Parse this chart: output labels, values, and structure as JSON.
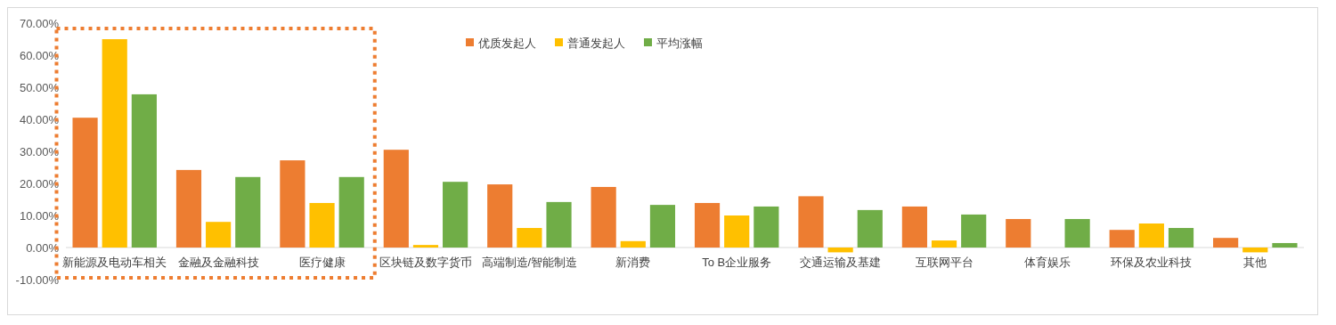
{
  "chart_data": {
    "type": "bar",
    "categories": [
      "新能源及电动车相关",
      "金融及金融科技",
      "医疗健康",
      "区块链及数字货币",
      "高端制造/智能制造",
      "新消费",
      "To B企业服务",
      "交通运输及基建",
      "互联网平台",
      "体育娱乐",
      "环保及农业科技",
      "其他"
    ],
    "series": [
      {
        "name": "优质发起人",
        "color": "#ed7d31",
        "values": [
          40.5,
          24.2,
          27.2,
          30.5,
          19.7,
          18.9,
          13.9,
          16,
          12.8,
          8.9,
          5.5,
          3
        ]
      },
      {
        "name": "普通发起人",
        "color": "#ffc000",
        "values": [
          65,
          8,
          13.9,
          0.8,
          6.1,
          2,
          10,
          -1.5,
          2.2,
          0,
          7.5,
          -1.5
        ]
      },
      {
        "name": "平均涨幅",
        "color": "#70ad47",
        "values": [
          47.8,
          22,
          22,
          20.5,
          14.2,
          13.3,
          12.8,
          11.7,
          10.3,
          8.9,
          6.1,
          1.4
        ]
      }
    ],
    "ylim": [
      -10,
      70
    ],
    "yticks": [
      {
        "value": -10,
        "label": "-10.00%"
      },
      {
        "value": 0,
        "label": "0.00%"
      },
      {
        "value": 10,
        "label": "10.00%"
      },
      {
        "value": 20,
        "label": "20.00%"
      },
      {
        "value": 30,
        "label": "30.00%"
      },
      {
        "value": 40,
        "label": "40.00%"
      },
      {
        "value": 50,
        "label": "50.00%"
      },
      {
        "value": 60,
        "label": "60.00%"
      },
      {
        "value": 70,
        "label": "70.00%"
      }
    ],
    "legend": "top"
  }
}
